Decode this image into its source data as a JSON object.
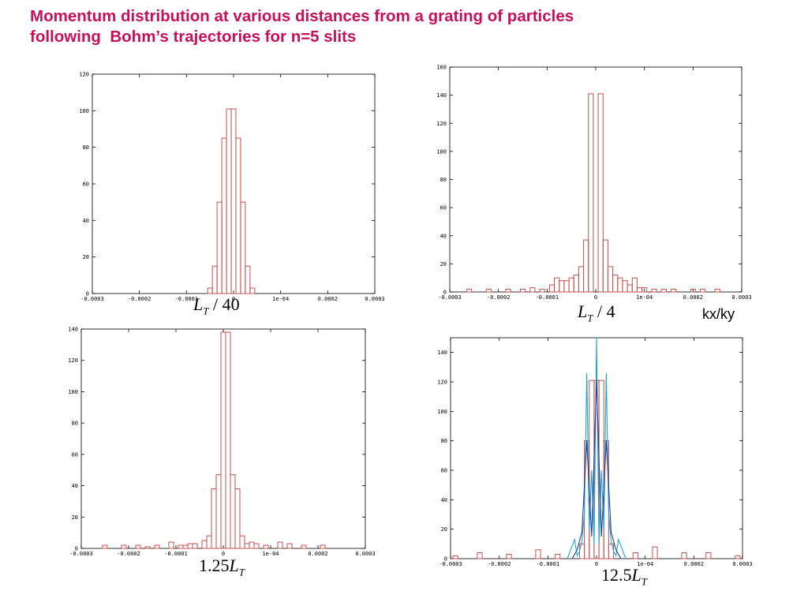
{
  "title": {
    "line1": "Momentum distribution at various distances from a grating of particles",
    "line2": "following  Bohm’s trajectories for n=5 slits"
  },
  "labels": {
    "panel1": {
      "var": "L",
      "sub": "T",
      "rest": " / 40"
    },
    "panel2": {
      "var": "L",
      "sub": "T",
      "rest": " / 4"
    },
    "panel3": {
      "pre": "1.25",
      "var": "L",
      "sub": "T"
    },
    "panel4": {
      "pre": "12.5",
      "var": "L",
      "sub": "T"
    },
    "x_unit": "kx/ky"
  },
  "colors": {
    "histogram": "#c0504d",
    "curve_cyan": "#1aa6d6",
    "curve_navy": "#2e3d8f"
  },
  "chart_data": [
    {
      "type": "bar",
      "histogram": true,
      "xlim": [
        -0.0003,
        0.0003
      ],
      "ylim": [
        0,
        120
      ],
      "xticks": [
        -0.0003,
        -0.0002,
        -0.0001,
        0,
        0.0001,
        0.0002,
        0.0003
      ],
      "xtick_labels": [
        "-0.0003",
        "-0.0002",
        "-0.0001",
        "0",
        "1e-04",
        "0.0002",
        "0.0003"
      ],
      "yticks": [
        0,
        20,
        40,
        60,
        80,
        100,
        120
      ],
      "bin_width": 1e-05,
      "bin_centers": [
        -5e-05,
        -4e-05,
        -3e-05,
        -2e-05,
        -1e-05,
        0,
        1e-05,
        2e-05,
        3e-05,
        4e-05,
        5e-05
      ],
      "values": [
        3,
        15,
        50,
        85,
        101,
        101,
        85,
        50,
        15,
        3,
        0
      ]
    },
    {
      "type": "bar",
      "histogram": true,
      "xlim": [
        -0.0003,
        0.0003
      ],
      "ylim": [
        0,
        160
      ],
      "xticks": [
        -0.0003,
        -0.0002,
        -0.0001,
        0,
        0.0001,
        0.0002,
        0.0003
      ],
      "xtick_labels": [
        "-0.0003",
        "-0.0002",
        "-0.0001",
        "0",
        "1e-04",
        "0.0002",
        "0.0003"
      ],
      "yticks": [
        0,
        20,
        40,
        60,
        80,
        100,
        120,
        140,
        160
      ],
      "bin_width": 1e-05,
      "bin_centers": [
        -0.00026,
        -0.00022,
        -0.00018,
        -0.00015,
        -0.00013,
        -0.00011,
        -9e-05,
        -8e-05,
        -7e-05,
        -6e-05,
        -5e-05,
        -4e-05,
        -3e-05,
        -2e-05,
        -1e-05,
        1e-05,
        2e-05,
        3e-05,
        4e-05,
        5e-05,
        6e-05,
        7e-05,
        8e-05,
        9e-05,
        0.0001,
        0.00012,
        0.00014,
        0.00016,
        0.0002,
        0.00022,
        0.00025
      ],
      "values": [
        2,
        2,
        2,
        2,
        3,
        2,
        5,
        10,
        8,
        8,
        10,
        12,
        18,
        37,
        141,
        141,
        37,
        18,
        12,
        10,
        8,
        5,
        10,
        3,
        3,
        2,
        2,
        2,
        2,
        2,
        2
      ]
    },
    {
      "type": "bar",
      "histogram": true,
      "xlim": [
        -0.0003,
        0.0003
      ],
      "ylim": [
        0,
        140
      ],
      "xticks": [
        -0.0003,
        -0.0002,
        -0.0001,
        0,
        0.0001,
        0.0002,
        0.0003
      ],
      "xtick_labels": [
        "-0.0003",
        "-0.0002",
        "-0.0001",
        "0",
        "1e-04",
        "0.0002",
        "0.0003"
      ],
      "yticks": [
        0,
        20,
        40,
        60,
        80,
        100,
        120,
        140
      ],
      "bin_width": 1e-05,
      "bin_centers": [
        -0.00025,
        -0.00021,
        -0.00018,
        -0.00016,
        -0.00014,
        -0.00011,
        -9e-05,
        -8e-05,
        -7e-05,
        -6e-05,
        -4e-05,
        -3e-05,
        -2e-05,
        -1e-05,
        0,
        1e-05,
        2e-05,
        3e-05,
        4e-05,
        5e-05,
        6e-05,
        7e-05,
        9e-05,
        0.00012,
        0.00014,
        0.00017,
        0.00021
      ],
      "values": [
        2,
        2,
        2,
        1,
        2,
        4,
        2,
        2,
        3,
        3,
        5,
        8,
        38,
        47,
        138,
        138,
        47,
        38,
        8,
        3,
        4,
        3,
        2,
        4,
        3,
        2,
        2
      ]
    },
    {
      "type": "bar",
      "histogram": true,
      "xlim": [
        -0.0003,
        0.0003
      ],
      "ylim": [
        0,
        150
      ],
      "xticks": [
        -0.0003,
        -0.0002,
        -0.0001,
        0,
        0.0001,
        0.0002,
        0.0003
      ],
      "xtick_labels": [
        "-0.0003",
        "-0.0002",
        "-0.0001",
        "0",
        "1e-04",
        "0.0002",
        "0.0003"
      ],
      "yticks": [
        0,
        20,
        40,
        60,
        80,
        100,
        120,
        140
      ],
      "bin_width": 1e-05,
      "bin_centers": [
        -0.00029,
        -0.00024,
        -0.00018,
        -0.00012,
        -8e-05,
        -3e-05,
        -2e-05,
        -1e-05,
        0,
        1e-05,
        2e-05,
        3e-05,
        8e-05,
        0.00012,
        0.00018,
        0.00023,
        0.00029
      ],
      "values": [
        2,
        4,
        3,
        6,
        3,
        10,
        80,
        121,
        121,
        121,
        80,
        10,
        4,
        8,
        4,
        4,
        2
      ],
      "series": [
        {
          "kind": "line",
          "color_key": "curve_cyan",
          "x": [
            -6e-05,
            -4.5e-05,
            -4e-05,
            -3.5e-05,
            -3e-05,
            -2.5e-05,
            -2e-05,
            -1.5e-05,
            -1e-05,
            -5e-06,
            0,
            5e-06,
            1e-05,
            1.5e-05,
            2e-05,
            2.5e-05,
            3e-05,
            3.5e-05,
            4e-05,
            4.5e-05,
            6e-05
          ],
          "y": [
            0,
            13,
            2,
            5,
            12,
            30,
            126,
            20,
            60,
            10,
            150,
            10,
            60,
            20,
            126,
            30,
            12,
            5,
            2,
            13,
            0
          ]
        },
        {
          "kind": "line",
          "color_key": "curve_navy",
          "x": [
            -5e-05,
            -4e-05,
            -3e-05,
            -2e-05,
            -1e-05,
            0,
            1e-05,
            2e-05,
            3e-05,
            4e-05,
            5e-05
          ],
          "y": [
            0,
            6,
            18,
            80,
            15,
            121,
            15,
            80,
            18,
            6,
            0
          ]
        }
      ]
    }
  ]
}
